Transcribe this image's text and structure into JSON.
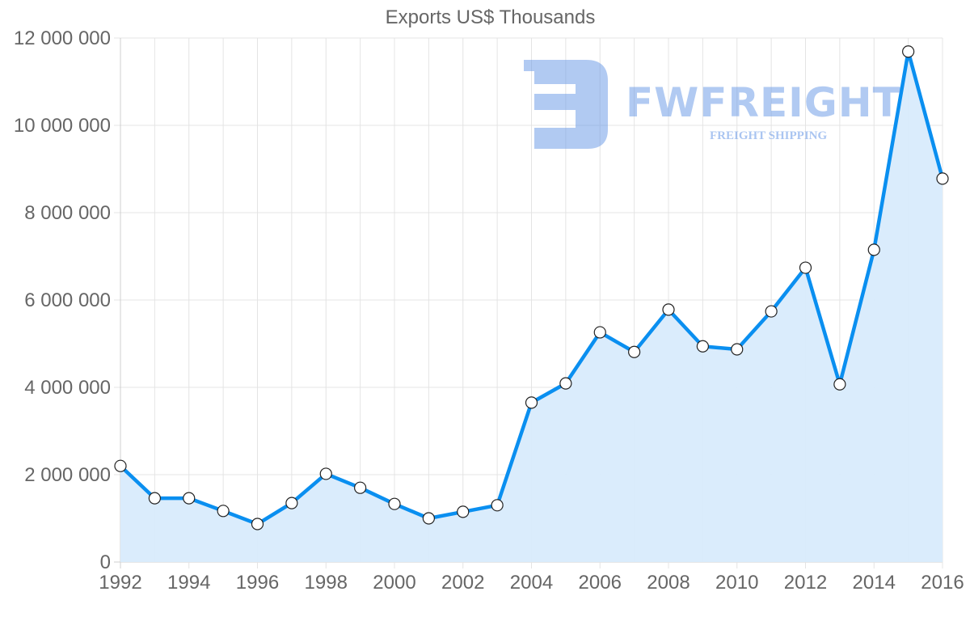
{
  "chart_data": {
    "type": "line",
    "title": "Exports US$ Thousands",
    "xlabel": "",
    "ylabel": "",
    "x": [
      1992,
      1993,
      1994,
      1995,
      1996,
      1997,
      1998,
      1999,
      2000,
      2001,
      2002,
      2003,
      2004,
      2005,
      2006,
      2007,
      2008,
      2009,
      2010,
      2011,
      2012,
      2013,
      2014,
      2015,
      2016
    ],
    "series": [
      {
        "name": "Exports US$ Thousands",
        "values": [
          2200000,
          1460000,
          1460000,
          1170000,
          870000,
          1350000,
          2020000,
          1700000,
          1330000,
          1000000,
          1150000,
          1300000,
          3650000,
          4090000,
          5260000,
          4810000,
          5780000,
          4940000,
          4870000,
          5740000,
          6740000,
          4070000,
          7150000,
          11690000,
          8780000
        ],
        "color": "#0a8ff0",
        "fill": "#d8ebfc"
      }
    ],
    "ylim": [
      0,
      12000000
    ],
    "xlim": [
      1992,
      2016
    ],
    "y_ticks": [
      "0",
      "2 000 000",
      "4 000 000",
      "6 000 000",
      "8 000 000",
      "10 000 000",
      "12 000 000"
    ],
    "x_ticks": [
      "1992",
      "1994",
      "1996",
      "1998",
      "2000",
      "2002",
      "2004",
      "2006",
      "2008",
      "2010",
      "2012",
      "2014",
      "2016"
    ],
    "grid": true,
    "legend": "none",
    "area_fill": true
  },
  "watermark": {
    "brand": "FWFREIGHT",
    "tagline": "FREIGHT SHIPPING"
  }
}
